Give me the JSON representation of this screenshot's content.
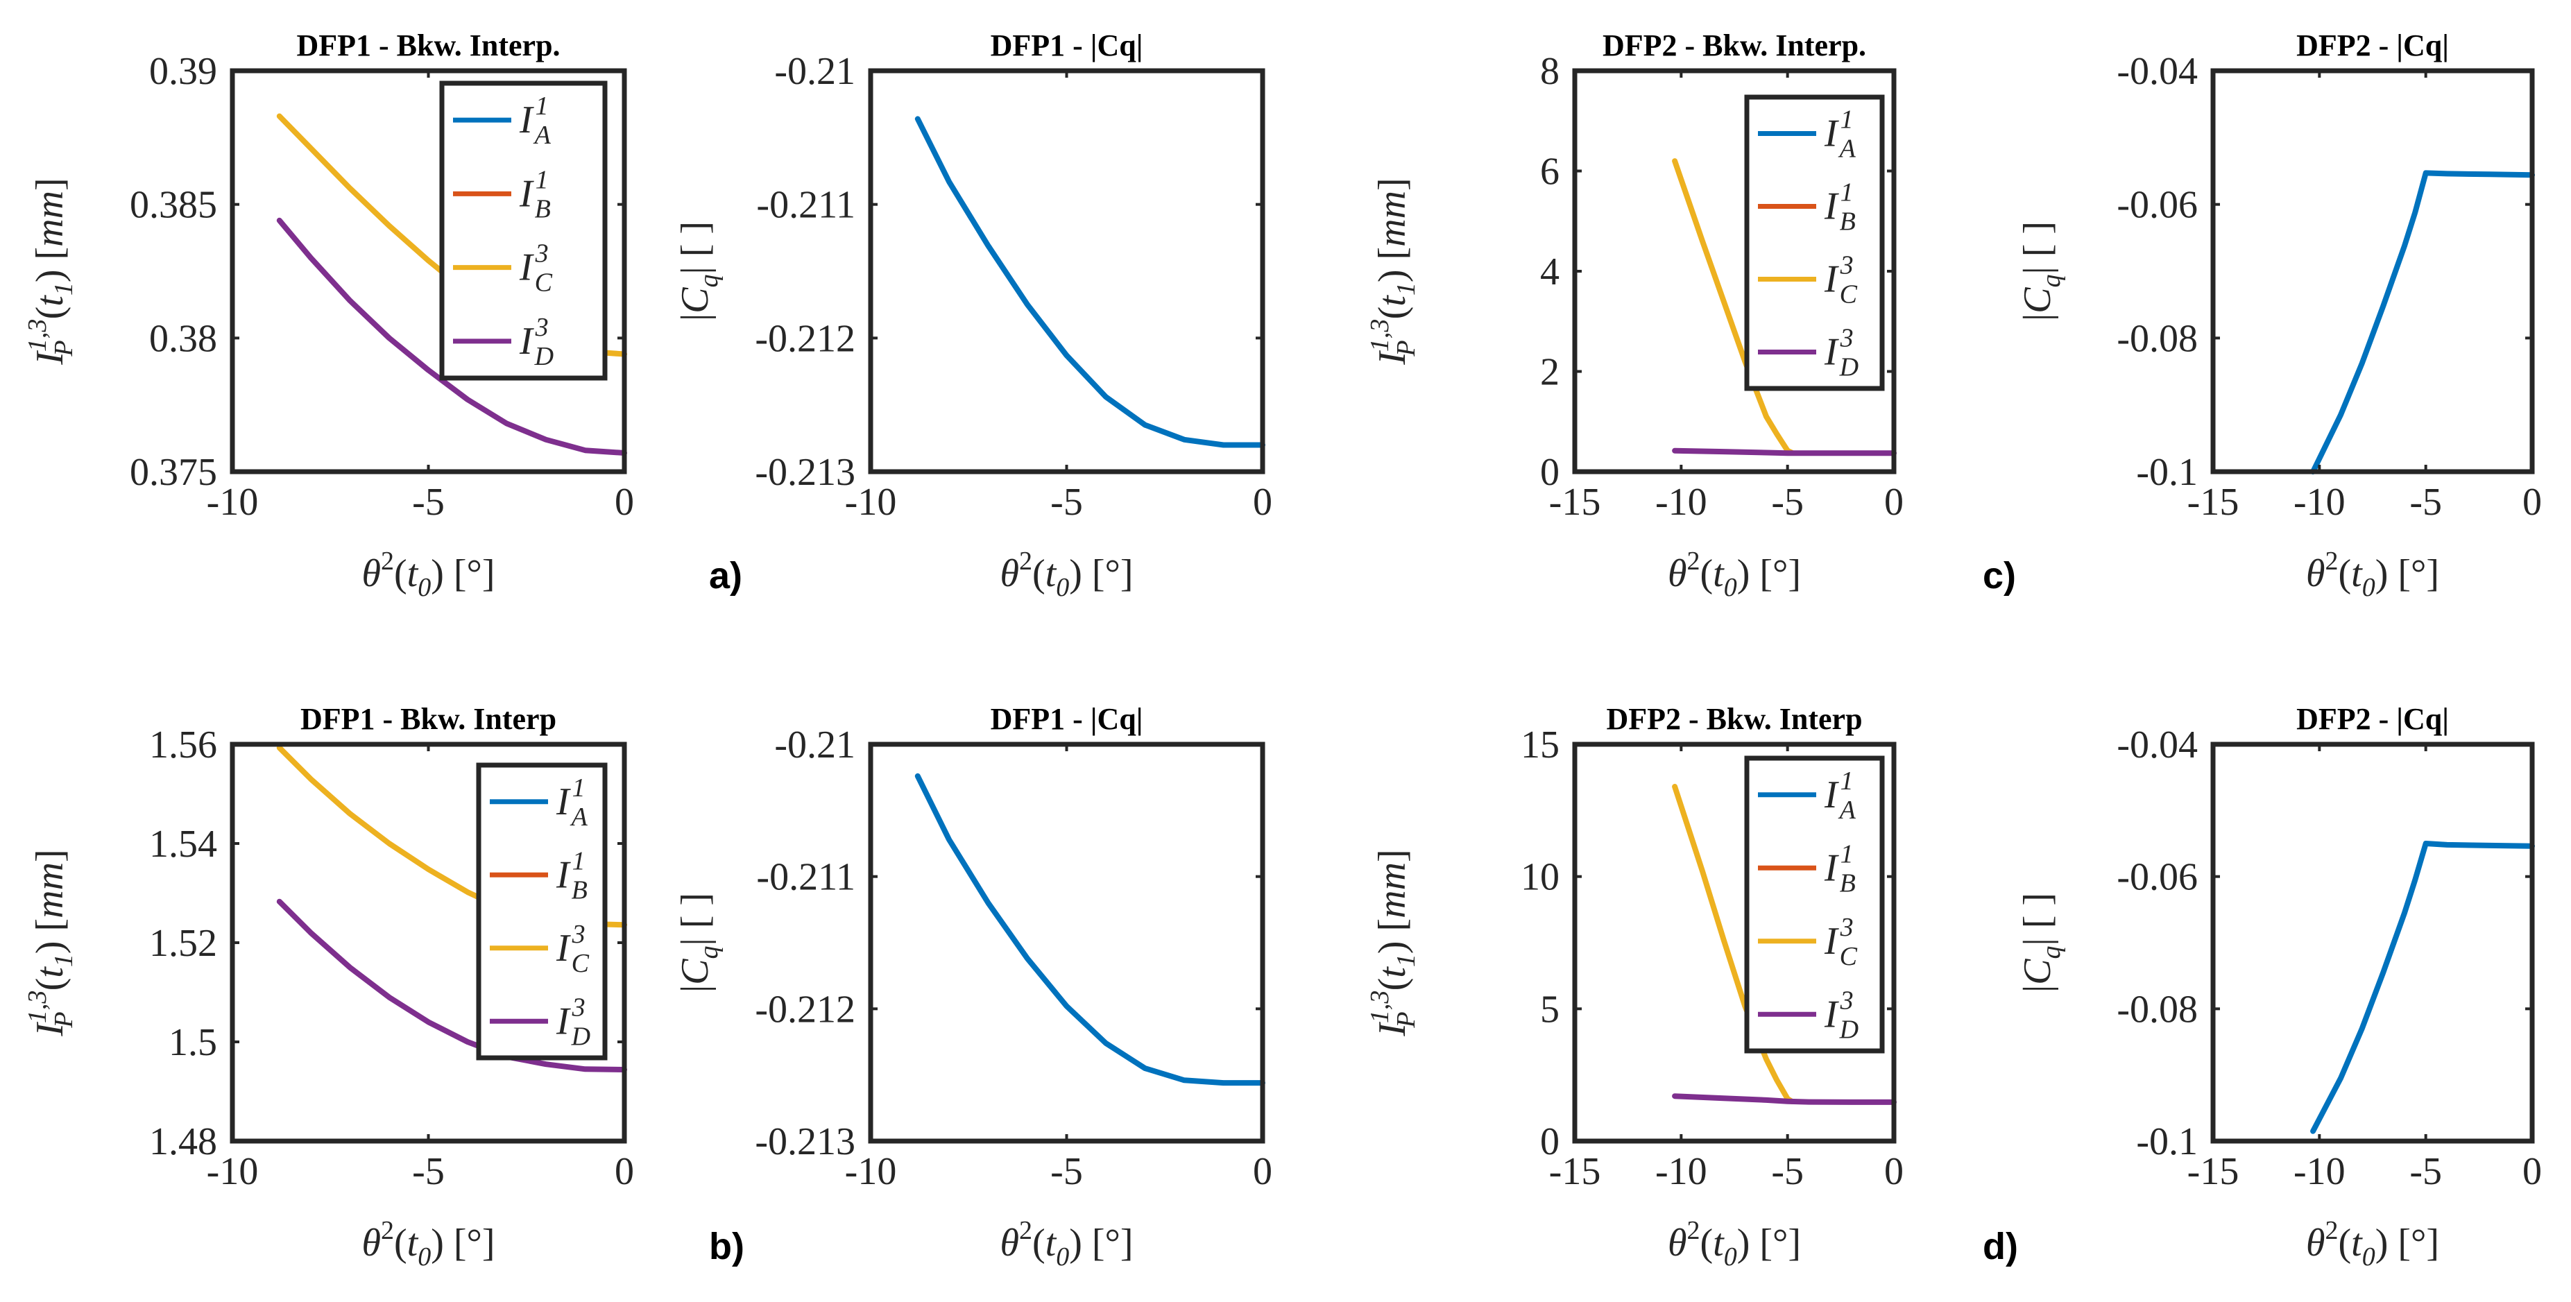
{
  "chart_data": [
    {
      "id": "p1",
      "type": "line",
      "title": "DFP1 - Bkw. Interp.",
      "xlabel": "θ²(t₀) [°]",
      "ylabel": "I_P^{1,3}(t_1) [mm]",
      "xlim": [
        -10,
        0
      ],
      "ylim": [
        0.375,
        0.39
      ],
      "xticks": [
        -10,
        -5,
        0
      ],
      "xtick_labels": [
        "-10",
        "-5",
        "0"
      ],
      "yticks": [
        0.375,
        0.38,
        0.385,
        0.39
      ],
      "ytick_labels": [
        "0.375",
        "0.38",
        "0.385",
        "0.39"
      ],
      "legend": "top-right",
      "series": [
        {
          "name": "I_A^1",
          "color": "#0072BD",
          "x": [],
          "y": []
        },
        {
          "name": "I_B^1",
          "color": "#D95319",
          "x": [],
          "y": []
        },
        {
          "name": "I_C^3",
          "color": "#EDB120",
          "x": [
            -8.8,
            -8,
            -7,
            -6,
            -5,
            -4,
            -3,
            -2,
            -1,
            0
          ],
          "y": [
            0.3883,
            0.3871,
            0.3856,
            0.3842,
            0.3829,
            0.3817,
            0.3806,
            0.3798,
            0.3795,
            0.3794
          ]
        },
        {
          "name": "I_D^3",
          "color": "#7E2F8E",
          "x": [
            -8.8,
            -8,
            -7,
            -6,
            -5,
            -4,
            -3,
            -2,
            -1,
            0
          ],
          "y": [
            0.3844,
            0.383,
            0.3814,
            0.38,
            0.3788,
            0.3777,
            0.3768,
            0.3762,
            0.3758,
            0.3757
          ]
        }
      ]
    },
    {
      "id": "p2",
      "type": "line",
      "title": "DFP1 - |Cq|",
      "xlabel": "θ²(t₀) [°]",
      "ylabel": "|C_q| [ ]",
      "xlim": [
        -10,
        0
      ],
      "ylim": [
        -0.213,
        -0.21
      ],
      "xticks": [
        -10,
        -5,
        0
      ],
      "xtick_labels": [
        "-10",
        "-5",
        "0"
      ],
      "yticks": [
        -0.213,
        -0.212,
        -0.211,
        -0.21
      ],
      "ytick_labels": [
        "-0.213",
        "-0.212",
        "-0.211",
        "-0.21"
      ],
      "panel_label": "a)",
      "series": [
        {
          "name": "|Cq|",
          "color": "#0072BD",
          "x": [
            -8.8,
            -8,
            -7,
            -6,
            -5,
            -4,
            -3,
            -2,
            -1,
            -0.5,
            0
          ],
          "y": [
            -0.21036,
            -0.21083,
            -0.21131,
            -0.21175,
            -0.21213,
            -0.21244,
            -0.21265,
            -0.21276,
            -0.2128,
            -0.2128,
            -0.2128
          ]
        }
      ]
    },
    {
      "id": "p3",
      "type": "line",
      "title": "DFP2 - Bkw. Interp.",
      "xlabel": "θ²(t₀) [°]",
      "ylabel": "I_P^{1,3}(t_1) [mm]",
      "xlim": [
        -15,
        0
      ],
      "ylim": [
        0,
        8
      ],
      "xticks": [
        -15,
        -10,
        -5,
        0
      ],
      "xtick_labels": [
        "-15",
        "-10",
        "-5",
        "0"
      ],
      "yticks": [
        0,
        2,
        4,
        6,
        8
      ],
      "ytick_labels": [
        "0",
        "2",
        "4",
        "6",
        "8"
      ],
      "legend": "top-right",
      "series": [
        {
          "name": "I_A^1",
          "color": "#0072BD",
          "x": [],
          "y": []
        },
        {
          "name": "I_B^1",
          "color": "#D95319",
          "x": [],
          "y": []
        },
        {
          "name": "I_C^3",
          "color": "#EDB120",
          "x": [
            -10.3,
            -9,
            -8,
            -7,
            -6,
            -5.5,
            -5,
            -4.8
          ],
          "y": [
            6.2,
            4.6,
            3.4,
            2.2,
            1.1,
            0.75,
            0.42,
            0.38
          ]
        },
        {
          "name": "I_D^3",
          "color": "#7E2F8E",
          "x": [
            -10.3,
            -8,
            -6,
            -5,
            -4,
            -2,
            0
          ],
          "y": [
            0.42,
            0.4,
            0.38,
            0.37,
            0.37,
            0.37,
            0.37
          ]
        }
      ]
    },
    {
      "id": "p4",
      "type": "line",
      "title": "DFP2 - |Cq|",
      "xlabel": "θ²(t₀) [°]",
      "ylabel": "|C_q| [ ]",
      "xlim": [
        -15,
        0
      ],
      "ylim": [
        -0.1,
        -0.04
      ],
      "xticks": [
        -15,
        -10,
        -5,
        0
      ],
      "xtick_labels": [
        "-15",
        "-10",
        "-5",
        "0"
      ],
      "yticks": [
        -0.1,
        -0.08,
        -0.06,
        -0.04
      ],
      "ytick_labels": [
        "-0.1",
        "-0.08",
        "-0.06",
        "-0.04"
      ],
      "panel_label": "c)",
      "series": [
        {
          "name": "|Cq|",
          "color": "#0072BD",
          "x": [
            -10.3,
            -9,
            -8,
            -7,
            -6,
            -5.5,
            -5,
            -4,
            -2,
            0
          ],
          "y": [
            -0.1,
            -0.0915,
            -0.0838,
            -0.0752,
            -0.0662,
            -0.0612,
            -0.0553,
            -0.0554,
            -0.0555,
            -0.0556
          ]
        }
      ]
    },
    {
      "id": "p5",
      "type": "line",
      "title": "DFP1 - Bkw. Interp",
      "xlabel": "θ²(t₀) [°]",
      "ylabel": "I_P^{1,3}(t_1) [mm]",
      "xlim": [
        -10,
        0
      ],
      "ylim": [
        1.48,
        1.56
      ],
      "xticks": [
        -10,
        -5,
        0
      ],
      "xtick_labels": [
        "-10",
        "-5",
        "0"
      ],
      "yticks": [
        1.48,
        1.5,
        1.52,
        1.54,
        1.56
      ],
      "ytick_labels": [
        "1.48",
        "1.5",
        "1.52",
        "1.54",
        "1.56"
      ],
      "legend": "top-right",
      "series": [
        {
          "name": "I_A^1",
          "color": "#0072BD",
          "x": [],
          "y": []
        },
        {
          "name": "I_B^1",
          "color": "#D95319",
          "x": [],
          "y": []
        },
        {
          "name": "I_C^3",
          "color": "#EDB120",
          "x": [
            -8.8,
            -8,
            -7,
            -6,
            -5,
            -4,
            -3,
            -2,
            -1,
            0
          ],
          "y": [
            1.5593,
            1.553,
            1.546,
            1.54,
            1.5348,
            1.5302,
            1.5265,
            1.5245,
            1.5238,
            1.5236
          ]
        },
        {
          "name": "I_D^3",
          "color": "#7E2F8E",
          "x": [
            -8.8,
            -8,
            -7,
            -6,
            -5,
            -4,
            -3,
            -2,
            -1,
            0
          ],
          "y": [
            1.5283,
            1.522,
            1.515,
            1.509,
            1.504,
            1.5,
            1.497,
            1.4955,
            1.4945,
            1.4944
          ]
        }
      ]
    },
    {
      "id": "p6",
      "type": "line",
      "title": "DFP1 - |Cq|",
      "xlabel": "θ²(t₀) [°]",
      "ylabel": "|C_q| [ ]",
      "xlim": [
        -10,
        0
      ],
      "ylim": [
        -0.213,
        -0.21
      ],
      "xticks": [
        -10,
        -5,
        0
      ],
      "xtick_labels": [
        "-10",
        "-5",
        "0"
      ],
      "yticks": [
        -0.213,
        -0.212,
        -0.211,
        -0.21
      ],
      "ytick_labels": [
        "-0.213",
        "-0.212",
        "-0.211",
        "-0.21"
      ],
      "panel_label": "b)",
      "series": [
        {
          "name": "|Cq|",
          "color": "#0072BD",
          "x": [
            -8.8,
            -8,
            -7,
            -6,
            -5,
            -4,
            -3,
            -2,
            -1,
            -0.5,
            0
          ],
          "y": [
            -0.21024,
            -0.21072,
            -0.2112,
            -0.21162,
            -0.21198,
            -0.21226,
            -0.21245,
            -0.21254,
            -0.21256,
            -0.21256,
            -0.21256
          ]
        }
      ]
    },
    {
      "id": "p7",
      "type": "line",
      "title": "DFP2 - Bkw. Interp",
      "xlabel": "θ²(t₀) [°]",
      "ylabel": "I_P^{1,3}(t_1) [mm]",
      "xlim": [
        -15,
        0
      ],
      "ylim": [
        0,
        15
      ],
      "xticks": [
        -15,
        -10,
        -5,
        0
      ],
      "xtick_labels": [
        "-15",
        "-10",
        "-5",
        "0"
      ],
      "yticks": [
        0,
        5,
        10,
        15
      ],
      "ytick_labels": [
        "0",
        "5",
        "10",
        "15"
      ],
      "legend": "top-right",
      "series": [
        {
          "name": "I_A^1",
          "color": "#0072BD",
          "x": [],
          "y": []
        },
        {
          "name": "I_B^1",
          "color": "#D95319",
          "x": [],
          "y": []
        },
        {
          "name": "I_C^3",
          "color": "#EDB120",
          "x": [
            -10.3,
            -9,
            -8,
            -7,
            -6,
            -5.5,
            -5,
            -4.8
          ],
          "y": [
            13.4,
            10.2,
            7.6,
            5.1,
            3.1,
            2.3,
            1.6,
            1.5
          ]
        },
        {
          "name": "I_D^3",
          "color": "#7E2F8E",
          "x": [
            -10.3,
            -8,
            -6,
            -5,
            -4,
            -2,
            0
          ],
          "y": [
            1.7,
            1.62,
            1.55,
            1.5,
            1.48,
            1.47,
            1.47
          ]
        }
      ]
    },
    {
      "id": "p8",
      "type": "line",
      "title": "DFP2 - |Cq|",
      "xlabel": "θ²(t₀) [°]",
      "ylabel": "|C_q| [ ]",
      "xlim": [
        -15,
        0
      ],
      "ylim": [
        -0.1,
        -0.04
      ],
      "xticks": [
        -15,
        -10,
        -5,
        0
      ],
      "xtick_labels": [
        "-15",
        "-10",
        "-5",
        "0"
      ],
      "yticks": [
        -0.1,
        -0.08,
        -0.06,
        -0.04
      ],
      "ytick_labels": [
        "-0.1",
        "-0.08",
        "-0.06",
        "-0.04"
      ],
      "panel_label": "d)",
      "series": [
        {
          "name": "|Cq|",
          "color": "#0072BD",
          "x": [
            -10.3,
            -9,
            -8,
            -7,
            -6,
            -5.5,
            -5,
            -4,
            -2,
            0
          ],
          "y": [
            -0.0985,
            -0.0905,
            -0.083,
            -0.0745,
            -0.0655,
            -0.0605,
            -0.055,
            -0.0552,
            -0.0553,
            -0.0554
          ]
        }
      ]
    }
  ]
}
